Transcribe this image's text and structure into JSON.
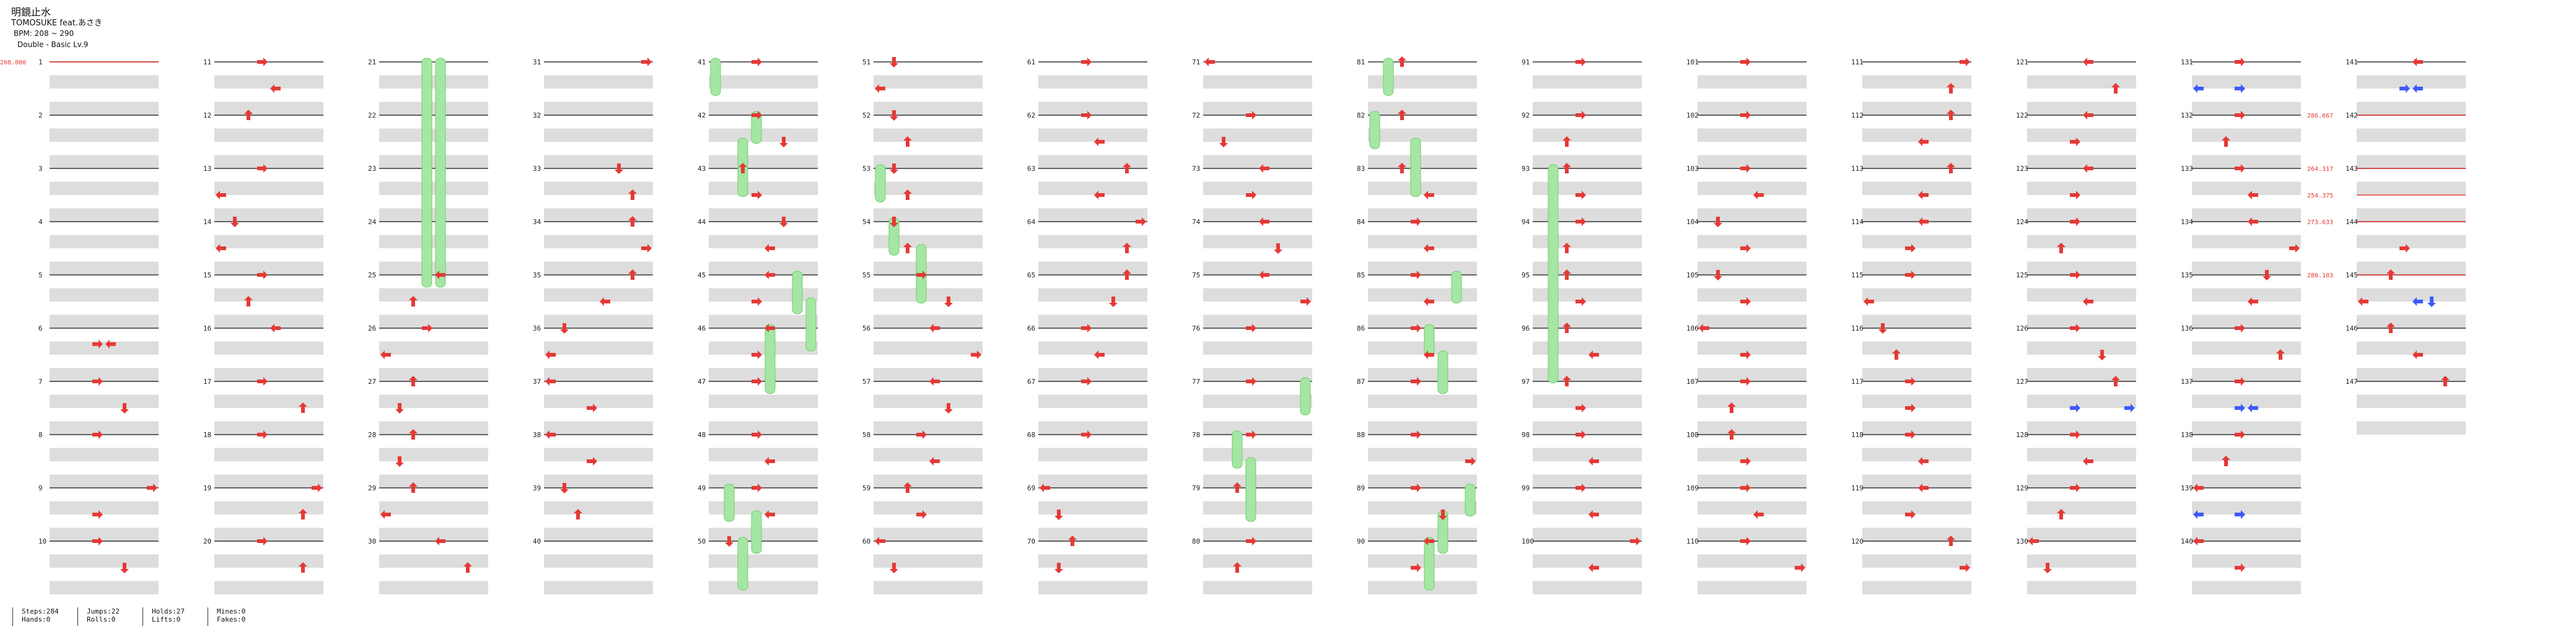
{
  "header": {
    "title": "明鏡止水",
    "subtitle": "TOMOSUKE feat.あさき",
    "bpm_label": "BPM: 208 ~ 290",
    "difficulty_label": "Double - Basic Lv.9"
  },
  "bpm_changes": [
    {
      "measure": 1,
      "label": "208.000"
    },
    {
      "measure": 142,
      "label": "286.667"
    },
    {
      "measure": 143,
      "label": "264.317"
    },
    {
      "measure": 143.5,
      "label": "254.375"
    },
    {
      "measure": 144,
      "label": "273.633"
    },
    {
      "measure": 145,
      "label": "280.103"
    }
  ],
  "stats": [
    {
      "line1": "Steps:284",
      "line2": "Hands:0"
    },
    {
      "line1": "Jumps:22",
      "line2": "Rolls:0"
    },
    {
      "line1": "Holds:27",
      "line2": "Lifts:0"
    },
    {
      "line1": "Mines:0",
      "line2": "Fakes:0"
    }
  ],
  "chart_data": {
    "type": "table",
    "description": "Step chart, 147 measures, 10 measures per column, 8 lanes",
    "total_measures": 147,
    "measures_per_column": 10,
    "lanes": 8,
    "colors": {
      "note": "#e53935",
      "hold": "#a5e6a5",
      "hold_border": "#6fcf6f",
      "alt_note": "#3d5afe",
      "bar_line": "#333333",
      "beat_band": "#dddddd"
    },
    "measure_numbers": [
      "1",
      "2",
      "3",
      "4",
      "5",
      "6",
      "7",
      "8",
      "9",
      "10",
      "11",
      "12",
      "13",
      "14",
      "15",
      "16",
      "17",
      "18",
      "19",
      "20",
      "21",
      "22",
      "23",
      "24",
      "25",
      "26",
      "27",
      "28",
      "29",
      "30",
      "31",
      "32",
      "33",
      "34",
      "35",
      "36",
      "37",
      "38",
      "39",
      "40",
      "41",
      "42",
      "43",
      "44",
      "45",
      "46",
      "47",
      "48",
      "49",
      "50",
      "51",
      "52",
      "53",
      "54",
      "55",
      "56",
      "57",
      "58",
      "59",
      "60",
      "61",
      "62",
      "63",
      "64",
      "65",
      "66",
      "67",
      "68",
      "69",
      "70",
      "71",
      "72",
      "73",
      "74",
      "75",
      "76",
      "77",
      "78",
      "79",
      "80",
      "81",
      "82",
      "83",
      "84",
      "85",
      "86",
      "87",
      "88",
      "89",
      "90",
      "91",
      "92",
      "93",
      "94",
      "95",
      "96",
      "97",
      "98",
      "99",
      "100",
      "101",
      "102",
      "103",
      "104",
      "105",
      "106",
      "107",
      "108",
      "109",
      "110",
      "111",
      "112",
      "113",
      "114",
      "115",
      "116",
      "117",
      "118",
      "119",
      "120",
      "121",
      "122",
      "123",
      "124",
      "125",
      "126",
      "127",
      "128",
      "129",
      "130",
      "131",
      "132",
      "133",
      "134",
      "135",
      "136",
      "137",
      "138",
      "139",
      "140",
      "141",
      "142",
      "143",
      "144",
      "145",
      "146",
      "147"
    ],
    "notes": [
      [
        6,
        0.3,
        3
      ],
      [
        6,
        0.3,
        4
      ],
      [
        7,
        0,
        3
      ],
      [
        7,
        0.5,
        5
      ],
      [
        8,
        0,
        3
      ],
      [
        9,
        0,
        7
      ],
      [
        9,
        0.5,
        3
      ],
      [
        10,
        0,
        3
      ],
      [
        10,
        0.5,
        5
      ],
      [
        11,
        0,
        3
      ],
      [
        11,
        0.5,
        4
      ],
      [
        12,
        0,
        2
      ],
      [
        13,
        0,
        3
      ],
      [
        13,
        0.5,
        0
      ],
      [
        14,
        0,
        1
      ],
      [
        14,
        0.5,
        0
      ],
      [
        15,
        0,
        3
      ],
      [
        15,
        0.5,
        2
      ],
      [
        16,
        0,
        4
      ],
      [
        17,
        0,
        3
      ],
      [
        17,
        0.5,
        6
      ],
      [
        18,
        0,
        3
      ],
      [
        19,
        0,
        7
      ],
      [
        19,
        0.5,
        6
      ],
      [
        20,
        0,
        3
      ],
      [
        20,
        0.5,
        6
      ],
      [
        25,
        0,
        4
      ],
      [
        25,
        0.5,
        2
      ],
      [
        26,
        0,
        3
      ],
      [
        26,
        0.5,
        0
      ],
      [
        27,
        0,
        2
      ],
      [
        27,
        0.5,
        1
      ],
      [
        28,
        0,
        2
      ],
      [
        28,
        0.5,
        1
      ],
      [
        29,
        0,
        2
      ],
      [
        29,
        0.5,
        0
      ],
      [
        30,
        0,
        4
      ],
      [
        30,
        0.5,
        6
      ],
      [
        31,
        0,
        7
      ],
      [
        33,
        0,
        5
      ],
      [
        33,
        0.5,
        6
      ],
      [
        34,
        0,
        6
      ],
      [
        34,
        0.5,
        7
      ],
      [
        35,
        0,
        6
      ],
      [
        35,
        0.5,
        4
      ],
      [
        36,
        0,
        1
      ],
      [
        36,
        0.5,
        0
      ],
      [
        37,
        0,
        0
      ],
      [
        37,
        0.5,
        3
      ],
      [
        38,
        0,
        0
      ],
      [
        38,
        0.5,
        3
      ],
      [
        39,
        0,
        1
      ],
      [
        39,
        0.5,
        2
      ],
      [
        41,
        0,
        3
      ],
      [
        42,
        0,
        3
      ],
      [
        42,
        0.5,
        5
      ],
      [
        43,
        0,
        2
      ],
      [
        43,
        0.5,
        3
      ],
      [
        44,
        0,
        5
      ],
      [
        44,
        0.5,
        4
      ],
      [
        45,
        0,
        4
      ],
      [
        45,
        0.5,
        3
      ],
      [
        46,
        0,
        4
      ],
      [
        46,
        0.5,
        3
      ],
      [
        47,
        0,
        3
      ],
      [
        48,
        0,
        3
      ],
      [
        48,
        0.5,
        4
      ],
      [
        49,
        0,
        3
      ],
      [
        49,
        0.5,
        4
      ],
      [
        50,
        0,
        1
      ],
      [
        51,
        0,
        1
      ],
      [
        51,
        0.5,
        0
      ],
      [
        52,
        0,
        1
      ],
      [
        52,
        0.5,
        2
      ],
      [
        53,
        0,
        1
      ],
      [
        53,
        0.5,
        2
      ],
      [
        54,
        0,
        1
      ],
      [
        54,
        0.5,
        2
      ],
      [
        55,
        0,
        3
      ],
      [
        55,
        0.5,
        5
      ],
      [
        56,
        0,
        4
      ],
      [
        56,
        0.5,
        7
      ],
      [
        57,
        0,
        4
      ],
      [
        57,
        0.5,
        5
      ],
      [
        58,
        0,
        3
      ],
      [
        58,
        0.5,
        4
      ],
      [
        59,
        0,
        2
      ],
      [
        59,
        0.5,
        3
      ],
      [
        60,
        0,
        0
      ],
      [
        60,
        0.5,
        1
      ],
      [
        61,
        0,
        3
      ],
      [
        62,
        0,
        3
      ],
      [
        62,
        0.5,
        4
      ],
      [
        63,
        0,
        6
      ],
      [
        63,
        0.5,
        4
      ],
      [
        64,
        0,
        7
      ],
      [
        64,
        0.5,
        6
      ],
      [
        65,
        0,
        6
      ],
      [
        65,
        0.5,
        5
      ],
      [
        66,
        0,
        3
      ],
      [
        66,
        0.5,
        4
      ],
      [
        67,
        0,
        3
      ],
      [
        68,
        0,
        3
      ],
      [
        69,
        0,
        0
      ],
      [
        69,
        0.5,
        1
      ],
      [
        70,
        0,
        2
      ],
      [
        70,
        0.5,
        1
      ],
      [
        71,
        0,
        0
      ],
      [
        72,
        0,
        3
      ],
      [
        72,
        0.5,
        1
      ],
      [
        73,
        0,
        4
      ],
      [
        73,
        0.5,
        3
      ],
      [
        74,
        0,
        4
      ],
      [
        74,
        0.5,
        5
      ],
      [
        75,
        0,
        4
      ],
      [
        75,
        0.5,
        7
      ],
      [
        76,
        0,
        3
      ],
      [
        77,
        0,
        3
      ],
      [
        78,
        0,
        3
      ],
      [
        79,
        0,
        2
      ],
      [
        80,
        0,
        3
      ],
      [
        80,
        0.5,
        2
      ],
      [
        81,
        0,
        2
      ],
      [
        82,
        0,
        2
      ],
      [
        83,
        0,
        2
      ],
      [
        83,
        0.5,
        4
      ],
      [
        84,
        0,
        3
      ],
      [
        84,
        0.5,
        4
      ],
      [
        85,
        0,
        3
      ],
      [
        85,
        0.5,
        4
      ],
      [
        86,
        0,
        3
      ],
      [
        86,
        0.5,
        4
      ],
      [
        87,
        0,
        3
      ],
      [
        88,
        0,
        3
      ],
      [
        88,
        0.5,
        7
      ],
      [
        89,
        0,
        3
      ],
      [
        89,
        0.5,
        5
      ],
      [
        90,
        0,
        4
      ],
      [
        90,
        0.5,
        3
      ],
      [
        91,
        0,
        3
      ],
      [
        92,
        0,
        3
      ],
      [
        92,
        0.5,
        2
      ],
      [
        93,
        0,
        2
      ],
      [
        93,
        0.5,
        3
      ],
      [
        94,
        0,
        3
      ],
      [
        94,
        0.5,
        2
      ],
      [
        95,
        0,
        2
      ],
      [
        95,
        0.5,
        3
      ],
      [
        96,
        0,
        2
      ],
      [
        96,
        0.5,
        4
      ],
      [
        97,
        0,
        2
      ],
      [
        97,
        0.5,
        3
      ],
      [
        98,
        0,
        3
      ],
      [
        98,
        0.5,
        4
      ],
      [
        99,
        0,
        3
      ],
      [
        99,
        0.5,
        4
      ],
      [
        100,
        0,
        7
      ],
      [
        100,
        0.5,
        4
      ],
      [
        101,
        0,
        3
      ],
      [
        102,
        0,
        3
      ],
      [
        103,
        0,
        3
      ],
      [
        103,
        0.5,
        4
      ],
      [
        104,
        0,
        1
      ],
      [
        104,
        0.5,
        3
      ],
      [
        105,
        0,
        1
      ],
      [
        105,
        0.5,
        3
      ],
      [
        106,
        0,
        0
      ],
      [
        106,
        0.5,
        3
      ],
      [
        107,
        0,
        3
      ],
      [
        107,
        0.5,
        2
      ],
      [
        108,
        0,
        2
      ],
      [
        108,
        0.5,
        3
      ],
      [
        109,
        0,
        3
      ],
      [
        109,
        0.5,
        4
      ],
      [
        110,
        0,
        3
      ],
      [
        110,
        0.5,
        7
      ],
      [
        111,
        0,
        7
      ],
      [
        111,
        0.5,
        6
      ],
      [
        112,
        0,
        6
      ],
      [
        112,
        0.5,
        4
      ],
      [
        113,
        0,
        6
      ],
      [
        113,
        0.5,
        4
      ],
      [
        114,
        0,
        4
      ],
      [
        114,
        0.5,
        3
      ],
      [
        115,
        0,
        3
      ],
      [
        115,
        0.5,
        0
      ],
      [
        116,
        0,
        1
      ],
      [
        116,
        0.5,
        2
      ],
      [
        117,
        0,
        3
      ],
      [
        117,
        0.5,
        3
      ],
      [
        118,
        0,
        3
      ],
      [
        118,
        0.5,
        4
      ],
      [
        119,
        0,
        4
      ],
      [
        119,
        0.5,
        3
      ],
      [
        120,
        0,
        6
      ],
      [
        120,
        0.5,
        7
      ],
      [
        121,
        0,
        4
      ],
      [
        121,
        0.5,
        6
      ],
      [
        122,
        0,
        4
      ],
      [
        122,
        0.5,
        3
      ],
      [
        123,
        0,
        4
      ],
      [
        123,
        0.5,
        3
      ],
      [
        124,
        0,
        3
      ],
      [
        124,
        0.5,
        2
      ],
      [
        125,
        0,
        3
      ],
      [
        125,
        0.5,
        4
      ],
      [
        126,
        0,
        3
      ],
      [
        126,
        0.5,
        5
      ],
      [
        127,
        0,
        6
      ],
      [
        128,
        0,
        3
      ],
      [
        128,
        0.5,
        4
      ],
      [
        129,
        0,
        3
      ],
      [
        129,
        0.5,
        2
      ],
      [
        130,
        0,
        0
      ],
      [
        130,
        0.5,
        1
      ],
      [
        131,
        0,
        3
      ],
      [
        131,
        0.5,
        3
      ],
      [
        132,
        0,
        3
      ],
      [
        132,
        0.5,
        2
      ],
      [
        133,
        0,
        3
      ],
      [
        133,
        0.5,
        4
      ],
      [
        134,
        0,
        4
      ],
      [
        134,
        0.5,
        7
      ],
      [
        135,
        0,
        5
      ],
      [
        135,
        0.5,
        4
      ],
      [
        136,
        0,
        3
      ],
      [
        136,
        0.5,
        6
      ],
      [
        137,
        0,
        3
      ],
      [
        137,
        0.5,
        4
      ],
      [
        138,
        0,
        3
      ],
      [
        138,
        0.5,
        2
      ],
      [
        139,
        0,
        0
      ],
      [
        139,
        0.5,
        3
      ],
      [
        140,
        0,
        0
      ],
      [
        140,
        0.5,
        3
      ],
      [
        141,
        0,
        4
      ],
      [
        144,
        0.5,
        3
      ],
      [
        145,
        0,
        2
      ],
      [
        145,
        0.5,
        0
      ],
      [
        146,
        0,
        2
      ],
      [
        146,
        0.5,
        4
      ],
      [
        147,
        0,
        6
      ]
    ],
    "alt_notes": [
      [
        131,
        0.5,
        0
      ],
      [
        131,
        0.5,
        3
      ],
      [
        141,
        0.5,
        3
      ],
      [
        141,
        0.5,
        4
      ],
      [
        145,
        0.5,
        4
      ],
      [
        145,
        0.5,
        5
      ],
      [
        127,
        0.5,
        3
      ],
      [
        127,
        0.5,
        7
      ],
      [
        137,
        0.5,
        3
      ],
      [
        137,
        0.5,
        4
      ],
      [
        139,
        0.5,
        0
      ],
      [
        139,
        0.5,
        3
      ]
    ],
    "holds": [
      [
        21,
        0,
        24,
        1.3,
        3
      ],
      [
        21,
        0,
        24,
        1.3,
        4
      ],
      [
        41,
        0,
        41.7,
        0,
        0
      ],
      [
        42,
        0,
        42.6,
        0,
        3
      ],
      [
        42.5,
        0,
        43.6,
        0,
        2
      ],
      [
        45,
        0,
        45.8,
        0,
        6
      ],
      [
        45.5,
        0,
        46.5,
        0,
        7
      ],
      [
        46,
        0,
        47.3,
        0,
        4
      ],
      [
        49,
        0,
        49.7,
        0,
        1
      ],
      [
        49.5,
        0,
        50.3,
        0,
        3
      ],
      [
        50,
        0,
        51.3,
        0,
        2
      ],
      [
        53,
        0,
        53.7,
        0,
        0
      ],
      [
        54,
        0,
        54.7,
        0,
        1
      ],
      [
        54.5,
        0,
        55.6,
        0,
        3
      ],
      [
        77,
        0,
        77.7,
        0,
        7
      ],
      [
        78,
        0,
        78.7,
        0,
        2
      ],
      [
        78.5,
        0,
        79.7,
        0,
        3
      ],
      [
        81,
        0,
        81.7,
        0,
        1
      ],
      [
        82,
        0,
        82.7,
        0,
        0
      ],
      [
        82.5,
        0,
        83.6,
        0,
        3
      ],
      [
        85,
        0,
        85.6,
        0,
        6
      ],
      [
        86,
        0,
        86.6,
        0,
        4
      ],
      [
        86.5,
        0,
        87.3,
        0,
        5
      ],
      [
        89,
        0,
        89.6,
        0,
        7
      ],
      [
        89.5,
        0,
        90.3,
        0,
        5
      ],
      [
        90,
        0,
        91.3,
        0,
        4
      ],
      [
        93,
        0,
        97.1,
        0,
        1
      ]
    ]
  }
}
